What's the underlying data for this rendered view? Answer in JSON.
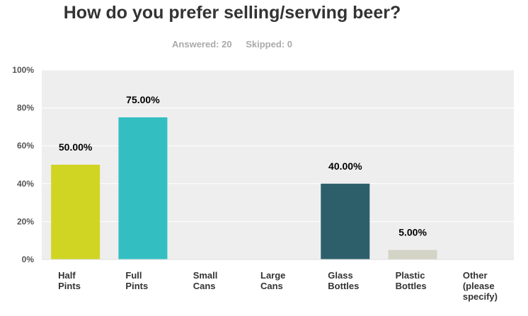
{
  "header": {
    "title": "How do you prefer selling/serving beer?",
    "answered_label": "Answered: 20",
    "skipped_label": "Skipped: 0"
  },
  "chart_data": {
    "type": "bar",
    "title": "How do you prefer selling/serving beer?",
    "categories": [
      "Half Pints",
      "Full Pints",
      "Small Cans",
      "Large Cans",
      "Glass Bottles",
      "Plastic Bottles",
      "Other (please specify)"
    ],
    "category_lines": [
      [
        "Half",
        "Pints"
      ],
      [
        "Full",
        "Pints"
      ],
      [
        "Small",
        "Cans"
      ],
      [
        "Large",
        "Cans"
      ],
      [
        "Glass",
        "Bottles"
      ],
      [
        "Plastic",
        "Bottles"
      ],
      [
        "Other",
        "(please",
        "specify)"
      ]
    ],
    "values": [
      50,
      75,
      0,
      0,
      40,
      5,
      0
    ],
    "data_labels": [
      "50.00%",
      "75.00%",
      "",
      "",
      "40.00%",
      "5.00%",
      ""
    ],
    "colors": [
      "#d0d524",
      "#33bfc2",
      "#cccccc",
      "#cccccc",
      "#2d5f6b",
      "#d4d4c6",
      "#cccccc"
    ],
    "ylim": [
      0,
      100
    ],
    "yticks": [
      0,
      20,
      40,
      60,
      80,
      100
    ],
    "ytick_labels": [
      "0%",
      "20%",
      "40%",
      "60%",
      "80%",
      "100%"
    ],
    "grid": true,
    "plot_background": "#eeeeee"
  }
}
